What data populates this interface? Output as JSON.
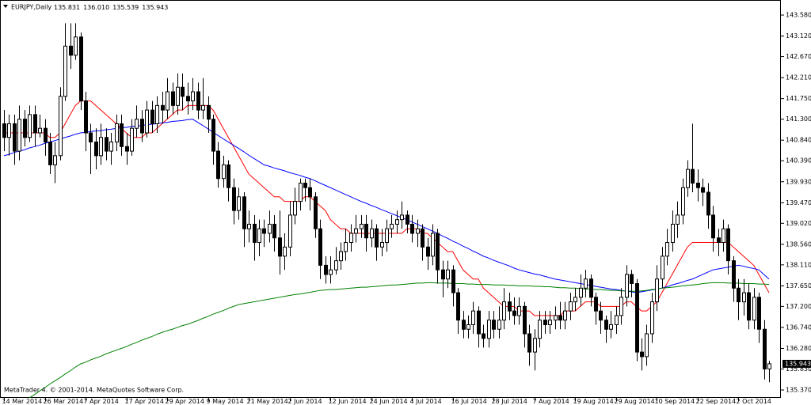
{
  "chart_data": {
    "type": "candlestick",
    "title": "EURJPY,Daily",
    "ohlc_labels": [
      "135.831",
      "136.010",
      "135.539",
      "135.943"
    ],
    "footer": "MetaTrader 4. © 2001-2014. MetaQuotes Software Corp.",
    "up_color": "#ffffff",
    "down_color": "#000000",
    "outline_color": "#000000",
    "categories": [
      "14 Mar 2014",
      null,
      null,
      null,
      null,
      null,
      null,
      null,
      "26 Mar 2014",
      null,
      null,
      null,
      null,
      null,
      null,
      null,
      "7 Apr 2014",
      null,
      null,
      null,
      null,
      null,
      null,
      null,
      "17 Apr 2014",
      null,
      null,
      null,
      null,
      null,
      null,
      null,
      "29 Apr 2014",
      null,
      null,
      null,
      null,
      null,
      null,
      null,
      "9 May 2014",
      null,
      null,
      null,
      null,
      null,
      null,
      null,
      "21 May 2014",
      null,
      null,
      null,
      null,
      null,
      null,
      null,
      "2 Jun 2014",
      null,
      null,
      null,
      null,
      null,
      null,
      null,
      "12 Jun 2014",
      null,
      null,
      null,
      null,
      null,
      null,
      null,
      "24 Jun 2014",
      null,
      null,
      null,
      null,
      null,
      null,
      null,
      "4 Jul 2014",
      null,
      null,
      null,
      null,
      null,
      null,
      null,
      "16 Jul 2014",
      null,
      null,
      null,
      null,
      null,
      null,
      null,
      "28 Jul 2014",
      null,
      null,
      null,
      null,
      null,
      null,
      null,
      "7 Aug 2014",
      null,
      null,
      null,
      null,
      null,
      null,
      null,
      "19 Aug 2014",
      null,
      null,
      null,
      null,
      null,
      null,
      null,
      "29 Aug 2014",
      null,
      null,
      null,
      null,
      null,
      null,
      null,
      "10 Sep 2014",
      null,
      null,
      null,
      null,
      null,
      null,
      null,
      "22 Sep 2014",
      null,
      null,
      null,
      null,
      null,
      null,
      null,
      "2 Oct 2014",
      null,
      null,
      null,
      null,
      null,
      null
    ],
    "open": [
      141.2,
      140.9,
      141.2,
      140.6,
      141.3,
      140.9,
      141.4,
      141.0,
      141.1,
      140.8,
      140.3,
      140.5,
      141.8,
      142.9,
      142.7,
      143.1,
      141.7,
      141.0,
      140.8,
      140.5,
      140.9,
      140.6,
      140.8,
      141.2,
      140.7,
      140.6,
      141.1,
      141.3,
      141.0,
      141.5,
      141.2,
      141.6,
      141.5,
      141.9,
      141.6,
      142.0,
      141.8,
      141.7,
      141.9,
      141.5,
      141.6,
      141.3,
      140.6,
      140.0,
      140.3,
      139.8,
      139.3,
      139.6,
      138.9,
      139.0,
      138.6,
      138.9,
      138.8,
      139.0,
      138.7,
      138.3,
      138.5,
      139.2,
      139.5,
      139.9,
      139.8,
      139.6,
      138.9,
      138.1,
      137.9,
      138.0,
      138.2,
      138.4,
      138.6,
      138.8,
      138.9,
      139.0,
      138.7,
      138.9,
      138.5,
      138.6,
      138.9,
      139.0,
      139.1,
      139.2,
      139.0,
      138.8,
      138.9,
      138.5,
      138.3,
      138.8,
      138.0,
      137.8,
      138.0,
      137.5,
      136.9,
      136.7,
      136.8,
      137.1,
      136.6,
      136.5,
      136.9,
      136.7,
      136.9,
      137.3,
      137.1,
      137.0,
      137.2,
      136.6,
      136.2,
      136.5,
      136.9,
      136.8,
      136.9,
      137.0,
      136.9,
      137.1,
      137.3,
      137.4,
      137.6,
      137.8,
      137.4,
      137.1,
      136.9,
      136.7,
      136.8,
      137.0,
      137.4,
      137.9,
      137.7,
      136.2,
      136.1,
      136.6,
      137.3,
      137.8,
      138.3,
      138.6,
      139.0,
      139.2,
      139.8,
      140.2,
      139.9,
      139.8,
      139.7,
      139.2,
      138.7,
      138.6,
      138.9,
      138.2,
      137.6,
      137.3,
      137.5,
      136.9,
      137.4,
      136.7,
      135.831
    ],
    "high": [
      141.5,
      141.4,
      141.4,
      141.6,
      141.5,
      141.6,
      141.6,
      141.4,
      141.3,
      141.0,
      140.8,
      142.0,
      143.4,
      143.4,
      143.4,
      143.2,
      141.9,
      141.2,
      141.1,
      141.2,
      141.1,
      141.0,
      141.4,
      141.4,
      141.0,
      141.3,
      141.6,
      141.5,
      141.7,
      141.7,
      141.8,
      141.9,
      142.2,
      142.1,
      142.3,
      142.3,
      142.1,
      142.2,
      142.1,
      142.2,
      141.8,
      141.4,
      140.8,
      140.5,
      140.4,
      140.0,
      139.8,
      139.7,
      139.3,
      139.2,
      139.1,
      139.1,
      139.3,
      139.2,
      139.3,
      138.8,
      139.5,
      139.8,
      140.0,
      140.0,
      140.0,
      139.7,
      139.1,
      138.3,
      138.3,
      138.5,
      138.6,
      138.9,
      139.0,
      139.2,
      139.2,
      139.2,
      139.1,
      139.0,
      138.9,
      139.1,
      139.2,
      139.3,
      139.5,
      139.3,
      139.2,
      139.1,
      139.0,
      138.7,
      139.0,
      138.9,
      138.2,
      138.2,
      138.1,
      137.6,
      137.1,
      137.0,
      137.3,
      137.2,
      136.8,
      137.1,
      137.1,
      137.2,
      137.6,
      137.5,
      137.4,
      137.4,
      137.3,
      136.8,
      136.7,
      137.1,
      137.1,
      137.1,
      137.2,
      137.3,
      137.3,
      137.5,
      137.6,
      137.9,
      138.0,
      137.9,
      137.5,
      137.3,
      137.0,
      137.1,
      137.2,
      137.6,
      138.1,
      138.0,
      137.8,
      136.5,
      136.8,
      137.5,
      138.1,
      138.5,
      138.9,
      139.3,
      139.5,
      140.0,
      140.4,
      141.2,
      140.2,
      140.0,
      139.9,
      139.4,
      138.9,
      139.1,
      139.0,
      138.3,
      137.8,
      137.8,
      137.7,
      137.6,
      137.5,
      136.9,
      136.01
    ],
    "low": [
      140.6,
      140.5,
      140.3,
      140.4,
      140.7,
      140.8,
      140.7,
      140.9,
      140.5,
      140.1,
      139.9,
      140.4,
      141.7,
      142.4,
      142.6,
      141.5,
      140.6,
      140.1,
      140.2,
      140.3,
      140.4,
      140.3,
      140.6,
      140.5,
      140.3,
      140.5,
      140.9,
      140.8,
      140.9,
      141.0,
      141.0,
      141.2,
      141.3,
      141.4,
      141.4,
      141.5,
      141.4,
      141.5,
      141.3,
      141.3,
      141.0,
      140.3,
      139.8,
      139.8,
      139.5,
      139.0,
      139.1,
      138.5,
      138.6,
      138.2,
      138.3,
      138.5,
      138.6,
      138.4,
      137.9,
      138.0,
      138.3,
      139.0,
      139.3,
      139.5,
      139.3,
      138.7,
      137.8,
      137.7,
      137.7,
      137.9,
      138.0,
      138.2,
      138.4,
      138.6,
      138.7,
      138.4,
      138.5,
      138.2,
      138.3,
      138.4,
      138.7,
      138.8,
      138.9,
      138.8,
      138.6,
      138.5,
      138.2,
      138.0,
      138.1,
      137.7,
      137.4,
      137.6,
      137.2,
      136.6,
      136.5,
      136.5,
      136.6,
      136.3,
      136.3,
      136.3,
      136.5,
      136.5,
      136.7,
      136.9,
      136.8,
      136.8,
      136.3,
      135.9,
      135.8,
      136.3,
      136.6,
      136.6,
      136.7,
      136.7,
      136.7,
      136.9,
      137.1,
      137.2,
      137.4,
      137.2,
      136.8,
      136.6,
      136.4,
      136.5,
      136.6,
      136.8,
      137.2,
      137.4,
      136.0,
      135.8,
      135.9,
      136.4,
      137.1,
      137.6,
      138.1,
      138.4,
      138.7,
      139.0,
      139.6,
      139.7,
      139.5,
      139.4,
      138.9,
      138.4,
      138.3,
      138.4,
      137.9,
      137.3,
      136.9,
      137.0,
      136.7,
      136.7,
      136.4,
      135.6,
      135.539
    ],
    "close": [
      140.9,
      141.2,
      140.6,
      141.3,
      140.9,
      141.4,
      141.0,
      141.1,
      140.8,
      140.3,
      140.5,
      141.8,
      142.9,
      142.7,
      143.1,
      141.7,
      141.0,
      140.8,
      140.5,
      140.9,
      140.6,
      140.8,
      141.2,
      140.7,
      140.6,
      141.1,
      141.3,
      141.0,
      141.5,
      141.2,
      141.6,
      141.5,
      141.9,
      141.6,
      142.0,
      141.8,
      141.7,
      141.9,
      141.5,
      141.6,
      141.3,
      140.6,
      140.0,
      140.3,
      139.8,
      139.3,
      139.6,
      138.9,
      139.0,
      138.6,
      138.9,
      138.8,
      139.0,
      138.7,
      138.3,
      138.5,
      139.2,
      139.5,
      139.9,
      139.8,
      139.6,
      138.9,
      138.1,
      137.9,
      138.0,
      138.2,
      138.4,
      138.6,
      138.8,
      138.9,
      139.0,
      138.7,
      138.9,
      138.5,
      138.6,
      138.9,
      139.0,
      139.1,
      139.2,
      139.0,
      138.8,
      138.9,
      138.5,
      138.3,
      138.8,
      138.0,
      137.8,
      138.0,
      137.5,
      136.9,
      136.7,
      136.8,
      137.1,
      136.6,
      136.5,
      136.9,
      136.7,
      136.9,
      137.3,
      137.1,
      137.0,
      137.2,
      136.6,
      136.2,
      136.5,
      136.9,
      136.8,
      136.9,
      137.0,
      136.9,
      137.1,
      137.3,
      137.4,
      137.6,
      137.8,
      137.4,
      137.1,
      136.9,
      136.7,
      136.8,
      137.0,
      137.4,
      137.9,
      137.7,
      136.2,
      136.1,
      136.6,
      137.3,
      137.8,
      138.3,
      138.6,
      139.0,
      139.2,
      139.8,
      140.2,
      139.9,
      139.8,
      139.7,
      139.2,
      138.7,
      138.6,
      138.9,
      138.2,
      137.6,
      137.3,
      137.5,
      136.9,
      137.4,
      136.7,
      135.831,
      135.943
    ],
    "moving_averages": [
      {
        "color": "#ff0000",
        "values": [
          141.0,
          141.0,
          141.0,
          141.0,
          141.0,
          141.0,
          141.0,
          141.0,
          141.0,
          140.9,
          140.9,
          141.0,
          141.2,
          141.4,
          141.6,
          141.7,
          141.7,
          141.7,
          141.6,
          141.5,
          141.4,
          141.3,
          141.2,
          141.1,
          141.0,
          140.9,
          140.9,
          140.9,
          141.0,
          141.0,
          141.1,
          141.2,
          141.3,
          141.4,
          141.5,
          141.5,
          141.6,
          141.6,
          141.6,
          141.6,
          141.6,
          141.5,
          141.3,
          141.1,
          140.9,
          140.7,
          140.5,
          140.3,
          140.1,
          140.0,
          139.9,
          139.8,
          139.7,
          139.6,
          139.6,
          139.5,
          139.5,
          139.5,
          139.5,
          139.6,
          139.6,
          139.5,
          139.4,
          139.3,
          139.1,
          139.0,
          138.9,
          138.9,
          138.8,
          138.8,
          138.8,
          138.8,
          138.8,
          138.8,
          138.8,
          138.8,
          138.8,
          138.8,
          138.8,
          138.9,
          138.9,
          138.9,
          138.8,
          138.8,
          138.7,
          138.6,
          138.5,
          138.4,
          138.4,
          138.2,
          138.0,
          137.9,
          137.8,
          137.8,
          137.6,
          137.5,
          137.4,
          137.3,
          137.2,
          137.2,
          137.2,
          137.1,
          137.1,
          137.1,
          137.0,
          137.0,
          137.0,
          137.0,
          137.0,
          137.0,
          137.1,
          137.1,
          137.1,
          137.2,
          137.3,
          137.3,
          137.3,
          137.2,
          137.2,
          137.2,
          137.2,
          137.2,
          137.3,
          137.3,
          137.2,
          137.1,
          137.1,
          137.2,
          137.3,
          137.5,
          137.7,
          137.9,
          138.1,
          138.3,
          138.5,
          138.6,
          138.6,
          138.6,
          138.6,
          138.6,
          138.6,
          138.6,
          138.6,
          138.5,
          138.4,
          138.3,
          138.2,
          138.1,
          137.9,
          137.7,
          137.5
        ]
      },
      {
        "color": "#0000ff",
        "values": [
          140.5,
          140.53,
          140.57,
          140.6,
          140.63,
          140.67,
          140.7,
          140.73,
          140.77,
          140.8,
          140.83,
          140.87,
          140.9,
          140.93,
          140.97,
          141.0,
          141.01,
          141.03,
          141.04,
          141.05,
          141.07,
          141.08,
          141.1,
          141.11,
          141.12,
          141.14,
          141.15,
          141.16,
          141.18,
          141.19,
          141.2,
          141.22,
          141.23,
          141.25,
          141.26,
          141.27,
          141.29,
          141.3,
          141.23,
          141.16,
          141.09,
          141.01,
          140.94,
          140.87,
          140.8,
          140.73,
          140.66,
          140.59,
          140.51,
          140.44,
          140.37,
          140.3,
          140.27,
          140.23,
          140.2,
          140.17,
          140.13,
          140.1,
          140.07,
          140.03,
          140.0,
          139.95,
          139.9,
          139.85,
          139.8,
          139.75,
          139.7,
          139.65,
          139.6,
          139.55,
          139.5,
          139.46,
          139.41,
          139.37,
          139.32,
          139.28,
          139.23,
          139.19,
          139.14,
          139.1,
          139.05,
          139.0,
          138.95,
          138.9,
          138.85,
          138.8,
          138.74,
          138.69,
          138.63,
          138.58,
          138.52,
          138.47,
          138.41,
          138.36,
          138.3,
          138.26,
          138.21,
          138.17,
          138.13,
          138.09,
          138.04,
          138.0,
          137.97,
          137.94,
          137.91,
          137.89,
          137.86,
          137.83,
          137.8,
          137.78,
          137.76,
          137.74,
          137.72,
          137.7,
          137.68,
          137.66,
          137.64,
          137.62,
          137.6,
          137.58,
          137.57,
          137.55,
          137.53,
          137.52,
          137.5,
          137.52,
          137.54,
          137.56,
          137.58,
          137.6,
          137.63,
          137.67,
          137.7,
          137.73,
          137.77,
          137.8,
          137.85,
          137.9,
          137.95,
          138.0,
          138.02,
          138.04,
          138.06,
          138.08,
          138.1,
          138.08,
          138.05,
          138.03,
          138.0,
          137.9,
          137.8
        ]
      },
      {
        "color": "#008000",
        "values": [
          null,
          null,
          null,
          null,
          null,
          135.2,
          135.27,
          135.35,
          135.42,
          135.5,
          135.57,
          135.64,
          135.72,
          135.79,
          135.87,
          135.94,
          135.98,
          136.03,
          136.07,
          136.11,
          136.16,
          136.2,
          136.24,
          136.28,
          136.32,
          136.37,
          136.41,
          136.46,
          136.5,
          136.54,
          136.59,
          136.63,
          136.67,
          136.7,
          136.74,
          136.78,
          136.81,
          136.85,
          136.89,
          136.94,
          136.98,
          137.03,
          137.07,
          137.11,
          137.16,
          137.2,
          137.24,
          137.26,
          137.28,
          137.3,
          137.32,
          137.34,
          137.36,
          137.38,
          137.4,
          137.42,
          137.44,
          137.46,
          137.47,
          137.49,
          137.51,
          137.53,
          137.55,
          137.56,
          137.57,
          137.57,
          137.58,
          137.59,
          137.6,
          137.61,
          137.62,
          137.62,
          137.63,
          137.64,
          137.65,
          137.66,
          137.67,
          137.67,
          137.68,
          137.69,
          137.7,
          137.71,
          137.71,
          137.72,
          137.72,
          137.71,
          137.71,
          137.71,
          137.7,
          137.7,
          137.7,
          137.69,
          137.69,
          137.68,
          137.68,
          137.68,
          137.67,
          137.67,
          137.67,
          137.66,
          137.66,
          137.65,
          137.65,
          137.65,
          137.64,
          137.64,
          137.63,
          137.63,
          137.62,
          137.61,
          137.61,
          137.6,
          137.6,
          137.59,
          137.58,
          137.58,
          137.57,
          137.57,
          137.56,
          137.55,
          137.55,
          137.54,
          137.54,
          137.53,
          137.53,
          137.54,
          137.55,
          137.57,
          137.58,
          137.6,
          137.61,
          137.62,
          137.63,
          137.65,
          137.66,
          137.67,
          137.68,
          137.7,
          137.71,
          137.72,
          137.72,
          137.72,
          137.71,
          137.71,
          137.71,
          137.7,
          137.7,
          137.7,
          137.69,
          137.69,
          137.68
        ]
      }
    ],
    "ylim": [
      135.197,
      143.875
    ],
    "yticks": [
      {
        "value": 143.58,
        "label": "143.580"
      },
      {
        "value": 143.12,
        "label": "143.120"
      },
      {
        "value": 142.67,
        "label": "142.670"
      },
      {
        "value": 142.21,
        "label": "142.210"
      },
      {
        "value": 141.75,
        "label": "141.750"
      },
      {
        "value": 141.3,
        "label": "141.300"
      },
      {
        "value": 140.84,
        "label": "140.840"
      },
      {
        "value": 140.39,
        "label": "140.390"
      },
      {
        "value": 139.93,
        "label": "139.930"
      },
      {
        "value": 139.47,
        "label": "139.470"
      },
      {
        "value": 139.02,
        "label": "139.020"
      },
      {
        "value": 138.56,
        "label": "138.560"
      },
      {
        "value": 138.11,
        "label": "138.110"
      },
      {
        "value": 137.65,
        "label": "137.650"
      },
      {
        "value": 137.2,
        "label": "137.200"
      },
      {
        "value": 136.74,
        "label": "136.740"
      },
      {
        "value": 136.28,
        "label": "136.280"
      },
      {
        "value": 135.83,
        "label": "135.830"
      },
      {
        "value": 135.37,
        "label": "135.370"
      }
    ],
    "grid": false
  }
}
